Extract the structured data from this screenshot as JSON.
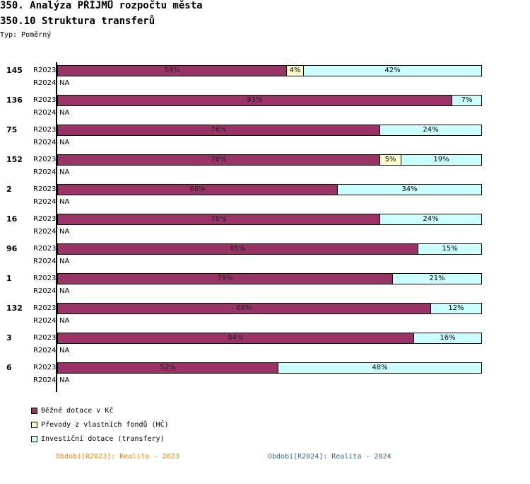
{
  "header": {
    "title": "350. Analýza PŘÍJMŮ rozpočtu města",
    "subtitle": "350.10 Struktura transferů",
    "type_label": "Typ: Poměrný"
  },
  "colors": {
    "bezne": "#993366",
    "prevody": "#ffffcc",
    "investicni": "#ccffff",
    "period1": "#ff8000",
    "period2": "#336699"
  },
  "chart_data": {
    "type": "bar",
    "orientation": "horizontal",
    "stacked": true,
    "normalized": true,
    "title": "350.10 Struktura transferů",
    "xlim": [
      0,
      100
    ],
    "unit": "%",
    "series_names": [
      "Běžné dotace v Kč",
      "Převody z vlastních fondů (HČ)",
      "Investiční dotace (transfery)"
    ],
    "groups": [
      {
        "label": "145",
        "rows": [
          {
            "period": "R2023",
            "values": [
              54,
              4,
              42
            ]
          },
          {
            "period": "R2024",
            "values": null,
            "na": "NA"
          }
        ]
      },
      {
        "label": "136",
        "rows": [
          {
            "period": "R2023",
            "values": [
              93,
              0,
              7
            ]
          },
          {
            "period": "R2024",
            "values": null,
            "na": "NA"
          }
        ]
      },
      {
        "label": "75",
        "rows": [
          {
            "period": "R2023",
            "values": [
              76,
              0,
              24
            ]
          },
          {
            "period": "R2024",
            "values": null,
            "na": "NA"
          }
        ]
      },
      {
        "label": "152",
        "rows": [
          {
            "period": "R2023",
            "values": [
              76,
              5,
              19
            ]
          },
          {
            "period": "R2024",
            "values": null,
            "na": "NA"
          }
        ]
      },
      {
        "label": "2",
        "rows": [
          {
            "period": "R2023",
            "values": [
              66,
              0,
              34
            ]
          },
          {
            "period": "R2024",
            "values": null,
            "na": "NA"
          }
        ]
      },
      {
        "label": "16",
        "rows": [
          {
            "period": "R2023",
            "values": [
              76,
              0,
              24
            ]
          },
          {
            "period": "R2024",
            "values": null,
            "na": "NA"
          }
        ]
      },
      {
        "label": "96",
        "rows": [
          {
            "period": "R2023",
            "values": [
              85,
              0,
              15
            ]
          },
          {
            "period": "R2024",
            "values": null,
            "na": "NA"
          }
        ]
      },
      {
        "label": "1",
        "rows": [
          {
            "period": "R2023",
            "values": [
              79,
              0,
              21
            ]
          },
          {
            "period": "R2024",
            "values": null,
            "na": "NA"
          }
        ]
      },
      {
        "label": "132",
        "rows": [
          {
            "period": "R2023",
            "values": [
              88,
              0,
              12
            ]
          },
          {
            "period": "R2024",
            "values": null,
            "na": "NA"
          }
        ]
      },
      {
        "label": "3",
        "rows": [
          {
            "period": "R2023",
            "values": [
              84,
              0,
              16
            ]
          },
          {
            "period": "R2024",
            "values": null,
            "na": "NA"
          }
        ]
      },
      {
        "label": "6",
        "rows": [
          {
            "period": "R2023",
            "values": [
              52,
              0,
              48
            ]
          },
          {
            "period": "R2024",
            "values": null,
            "na": "NA"
          }
        ]
      }
    ]
  },
  "legend": {
    "items": [
      {
        "label": "Běžné dotace v Kč",
        "color": "#993366"
      },
      {
        "label": "Převody z vlastních fondů (HČ)",
        "color": "#ffffcc"
      },
      {
        "label": "Investiční dotace (transfery)",
        "color": "#ccffff"
      }
    ]
  },
  "periods": {
    "p1": "Období[R2023]: Realita - 2023",
    "p2": "Období[R2024]: Realita - 2024"
  }
}
